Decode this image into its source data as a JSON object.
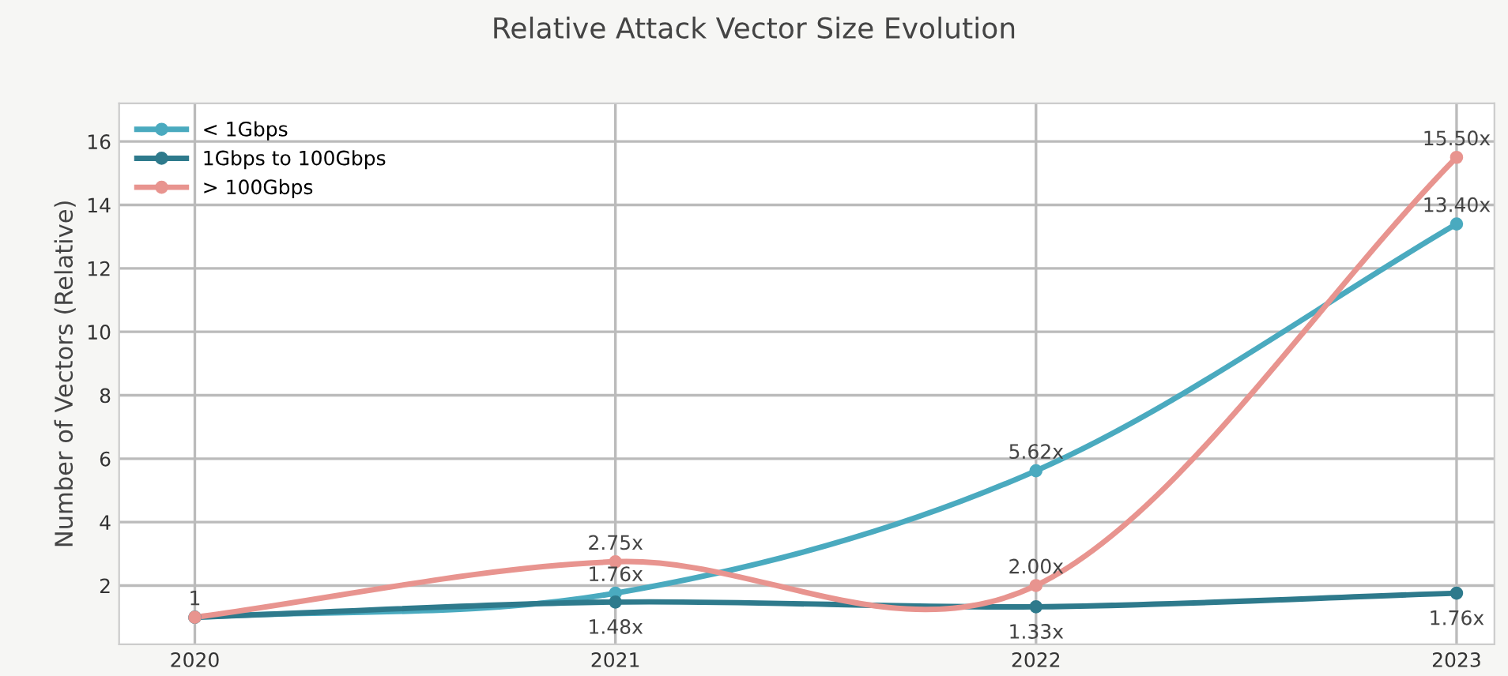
{
  "chart_data": {
    "type": "line",
    "title": "Relative Attack Vector Size Evolution",
    "ylabel": "Number of Vectors (Relative)",
    "x": [
      2020,
      2021,
      2022,
      2023
    ],
    "xlim": [
      2019.82,
      2023.09
    ],
    "xticks": [
      2020,
      2021,
      2022,
      2023
    ],
    "ylim": [
      0.15,
      17.2
    ],
    "yticks": [
      2,
      4,
      6,
      8,
      10,
      12,
      14,
      16
    ],
    "grid": true,
    "legend": "top left",
    "marker": "circle",
    "line_style": "solid",
    "series": [
      {
        "name": "< 1Gbps",
        "color": "#4aaabf",
        "values": [
          1,
          1.76,
          5.62,
          13.4
        ],
        "value_labels": [
          "1",
          "1.76x",
          "5.62x",
          "13.40x"
        ]
      },
      {
        "name": "1Gbps to 100Gbps",
        "color": "#2e7a8c",
        "values": [
          1,
          1.48,
          1.33,
          1.76
        ],
        "value_labels": [
          null,
          "1.48x",
          "1.33x",
          "1.76x"
        ]
      },
      {
        "name": "> 100Gbps",
        "color": "#e8948f",
        "values": [
          1,
          2.75,
          2.0,
          15.5
        ],
        "value_labels": [
          null,
          "2.75x",
          "2.00x",
          "15.50x"
        ]
      }
    ]
  }
}
